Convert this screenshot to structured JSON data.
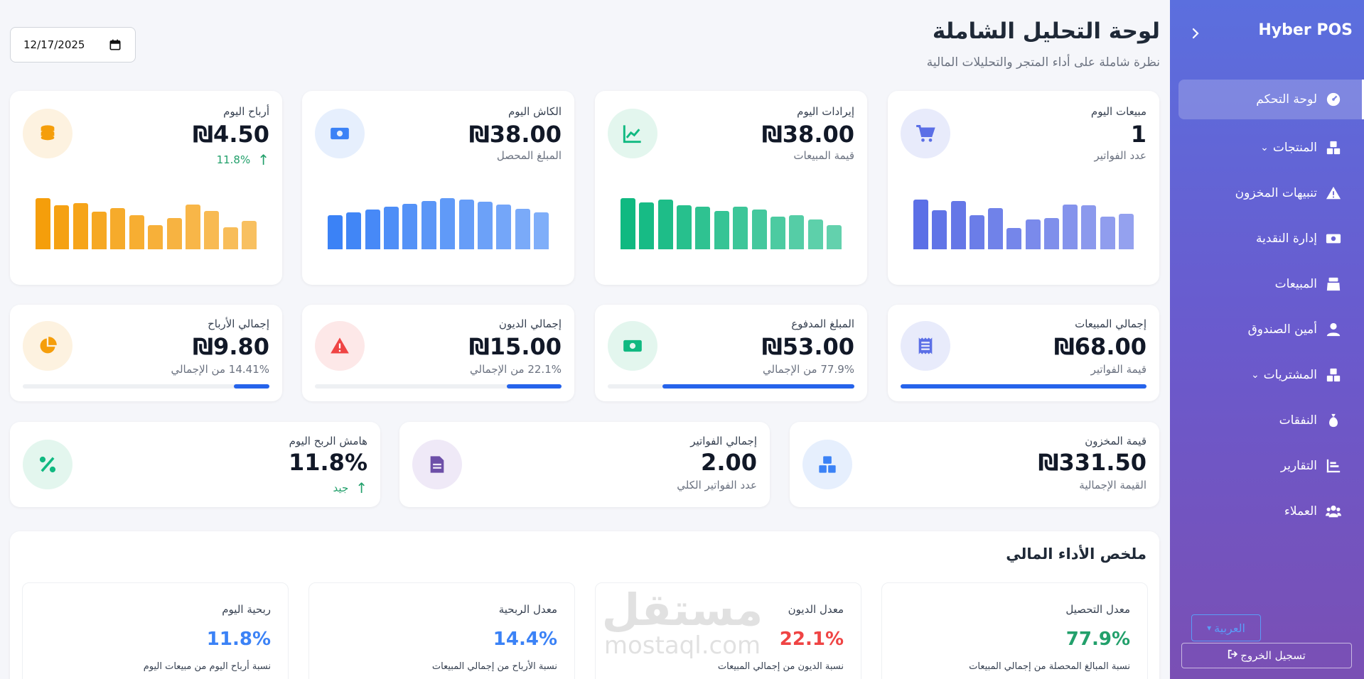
{
  "sidebar": {
    "brand": "Hyber POS",
    "collapse_icon": "chevron-left-icon",
    "items": [
      {
        "label": "لوحة التحكم",
        "icon": "gauge-icon",
        "active": true
      },
      {
        "label": "المنتجات",
        "icon": "boxes-icon",
        "has_caret": true
      },
      {
        "label": "تنبيهات المخزون",
        "icon": "warning-icon"
      },
      {
        "label": "إدارة النقدية",
        "icon": "money-icon"
      },
      {
        "label": "المبيعات",
        "icon": "cash-register-icon"
      },
      {
        "label": "أمين الصندوق",
        "icon": "user-icon"
      },
      {
        "label": "المشتريات",
        "icon": "boxes-icon",
        "has_caret": true
      },
      {
        "label": "النفقات",
        "icon": "money-bag-icon"
      },
      {
        "label": "التقارير",
        "icon": "chart-icon"
      },
      {
        "label": "العملاء",
        "icon": "users-icon"
      }
    ],
    "lang_label": "العربية",
    "logout_label": "تسجيل الخروج"
  },
  "header": {
    "title": "لوحة التحليل الشاملة",
    "subtitle": "نظرة شاملة على أداء المتجر والتحليلات المالية",
    "date_value": "12/17/2025"
  },
  "today_cards": [
    {
      "label": "مبيعات اليوم",
      "value": "1",
      "sub": "عدد الفواتير",
      "icon": "cart-icon",
      "color": "#5b6fe6",
      "bars": [
        70,
        55,
        68,
        48,
        58,
        30,
        42,
        44,
        63,
        62,
        46,
        50
      ]
    },
    {
      "label": "إيرادات اليوم",
      "value": "₪38.00",
      "sub": "قيمة المبيعات",
      "icon": "line-chart-icon",
      "color": "#10b981",
      "bars": [
        72,
        66,
        70,
        62,
        60,
        54,
        60,
        56,
        46,
        48,
        42,
        34
      ]
    },
    {
      "label": "الكاش اليوم",
      "value": "₪38.00",
      "sub": "المبلغ المحصل",
      "icon": "money-icon",
      "color": "#3b82f6",
      "bars": [
        48,
        52,
        56,
        60,
        64,
        68,
        72,
        70,
        67,
        63,
        57,
        52
      ]
    },
    {
      "label": "أرباح اليوم",
      "value": "₪4.50",
      "trend": "11.8%",
      "icon": "coins-icon",
      "color": "#f59e0b",
      "bars": [
        72,
        62,
        65,
        53,
        58,
        48,
        34,
        44,
        63,
        54,
        31,
        40
      ]
    }
  ],
  "total_cards": [
    {
      "label": "إجمالي المبيعات",
      "value": "₪68.00",
      "sub": "قيمة الفواتير",
      "icon": "receipt-icon",
      "progress": 100
    },
    {
      "label": "المبلغ المدفوع",
      "value": "₪53.00",
      "sub": "77.9% من الإجمالي",
      "icon": "money-icon",
      "progress": 77.9
    },
    {
      "label": "إجمالي الديون",
      "value": "₪15.00",
      "sub": "22.1% من الإجمالي",
      "icon": "warning-icon",
      "progress": 22.1
    },
    {
      "label": "إجمالي الأرباح",
      "value": "₪9.80",
      "sub": "14.41% من الإجمالي",
      "icon": "pie-icon",
      "progress": 14.41
    }
  ],
  "misc_cards": [
    {
      "label": "قيمة المخزون",
      "value": "₪331.50",
      "sub": "القيمة الإجمالية",
      "icon": "boxes-icon"
    },
    {
      "label": "إجمالي الفواتير",
      "value": "2.00",
      "sub": "عدد الفواتير الكلي",
      "icon": "invoice-icon"
    },
    {
      "label": "هامش الربح اليوم",
      "value": "11.8%",
      "trend": "جيد",
      "icon": "percent-icon"
    }
  ],
  "performance": {
    "title": "ملخص الأداء المالي",
    "items": [
      {
        "label": "معدل التحصيل",
        "value": "77.9%",
        "desc": "نسبة المبالغ المحصلة من إجمالي المبيعات",
        "color": "#22a06b"
      },
      {
        "label": "معدل الديون",
        "value": "22.1%",
        "desc": "نسبة الديون من إجمالي المبيعات",
        "color": "#ef4444"
      },
      {
        "label": "معدل الربحية",
        "value": "14.4%",
        "desc": "نسبة الأرباح من إجمالي المبيعات",
        "color": "#3b82f6"
      },
      {
        "label": "ربحية اليوم",
        "value": "11.8%",
        "desc": "نسبة أرباح اليوم من مبيعات اليوم",
        "color": "#3b82f6"
      }
    ]
  },
  "watermark": {
    "line1": "مستقل",
    "line2": "mostaql.com"
  }
}
